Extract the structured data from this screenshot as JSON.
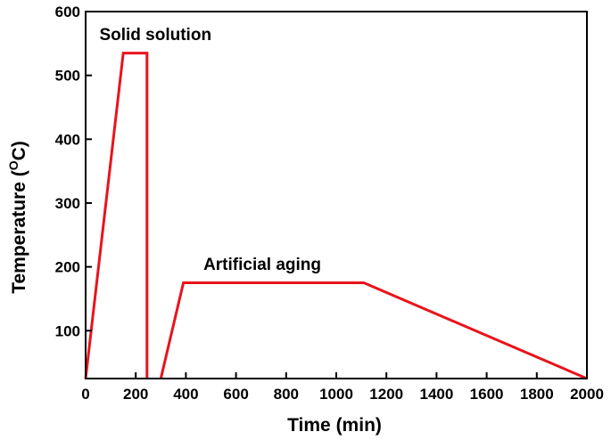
{
  "chart_data": {
    "type": "line",
    "xlabel": "Time (min)",
    "ylabel_main": "Temperature (",
    "ylabel_sup": "O",
    "ylabel_end": "C)",
    "xlim": [
      0,
      2000
    ],
    "ylim": [
      25,
      600
    ],
    "x_ticks": [
      0,
      200,
      400,
      600,
      800,
      1000,
      1200,
      1400,
      1600,
      1800,
      2000
    ],
    "y_ticks": [
      100,
      200,
      300,
      400,
      500,
      600
    ],
    "grid": false,
    "series": [
      {
        "color": "#e8141c",
        "points": [
          [
            0,
            25
          ],
          [
            150,
            535
          ],
          [
            245,
            535
          ],
          [
            245,
            25
          ]
        ]
      },
      {
        "color": "#e8141c",
        "points": [
          [
            300,
            25
          ],
          [
            390,
            175
          ],
          [
            1110,
            175
          ],
          [
            2000,
            25
          ]
        ]
      }
    ],
    "annotations": [
      {
        "text": "Solid solution",
        "x": 55,
        "y": 555
      },
      {
        "text": "Artificial aging",
        "x": 470,
        "y": 195
      }
    ]
  }
}
